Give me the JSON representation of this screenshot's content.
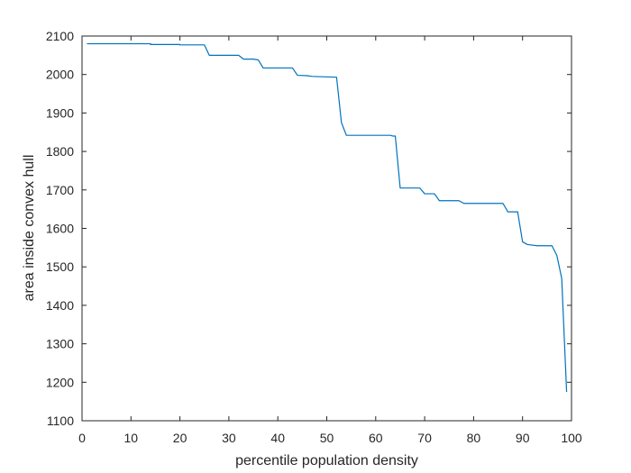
{
  "chart_data": {
    "type": "line",
    "title": "",
    "xlabel": "percentile population density",
    "ylabel": "area inside convex hull",
    "xlim": [
      0,
      100
    ],
    "ylim": [
      1100,
      2100
    ],
    "xticks": [
      0,
      10,
      20,
      30,
      40,
      50,
      60,
      70,
      80,
      90,
      100
    ],
    "yticks": [
      1100,
      1200,
      1300,
      1400,
      1500,
      1600,
      1700,
      1800,
      1900,
      2000,
      2100
    ],
    "grid": false,
    "box": true,
    "series": [
      {
        "color": "#0072BD",
        "x": [
          1,
          14,
          14,
          20,
          20,
          25,
          26,
          32,
          33,
          35,
          36,
          37,
          43,
          44,
          46,
          47,
          52,
          53,
          54,
          63,
          63.5,
          64,
          65,
          69,
          70,
          72,
          73,
          77,
          78,
          86,
          87,
          89,
          90,
          91,
          93,
          96,
          97,
          98,
          99
        ],
        "y": [
          2080,
          2080,
          2078,
          2078,
          2077,
          2077,
          2050,
          2050,
          2040,
          2040,
          2038,
          2017,
          2017,
          1998,
          1997,
          1995,
          1993,
          1875,
          1842,
          1842,
          1840,
          1840,
          1705,
          1705,
          1690,
          1690,
          1672,
          1672,
          1665,
          1665,
          1643,
          1643,
          1565,
          1558,
          1555,
          1555,
          1530,
          1470,
          1175
        ]
      }
    ]
  }
}
